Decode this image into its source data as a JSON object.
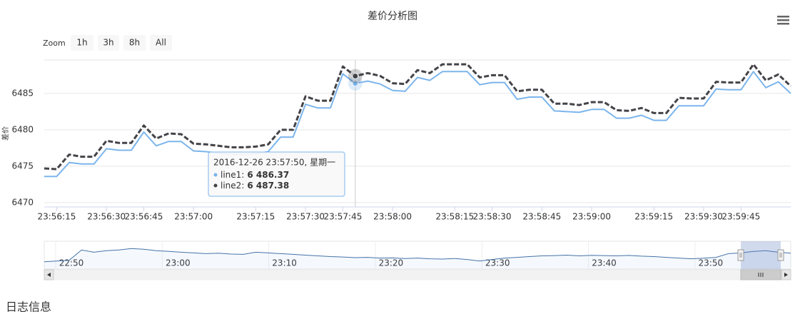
{
  "chart_data": {
    "type": "line",
    "title": "差价分析图",
    "y_label": "差价",
    "zoom": {
      "label": "Zoom",
      "buttons": [
        "1h",
        "3h",
        "8h",
        "All"
      ]
    },
    "categories": [
      null,
      "23:56:15",
      null,
      null,
      null,
      "23:56:30",
      null,
      null,
      "23:56:45",
      null,
      null,
      null,
      "23:57:00",
      null,
      null,
      null,
      null,
      "23:57:15",
      null,
      null,
      null,
      "23:57:30",
      null,
      null,
      "23:57:45",
      null,
      null,
      null,
      "23:58:00",
      null,
      null,
      null,
      null,
      "23:58:15",
      null,
      null,
      "23:58:30",
      null,
      null,
      null,
      "23:58:45",
      null,
      null,
      null,
      "23:59:00",
      null,
      null,
      null,
      null,
      "23:59:15",
      null,
      null,
      null,
      "23:59:30",
      null,
      null,
      "23:59:45",
      null,
      null,
      null,
      null
    ],
    "series": [
      {
        "name": "line1",
        "color": "#7cb5ec",
        "tooltip_label": "6 486.37",
        "values": [
          6473.6,
          6473.6,
          6475.5,
          6475.3,
          6475.3,
          6477.4,
          6477.2,
          6477.2,
          6479.7,
          6477.8,
          6478.4,
          6478.4,
          6477.1,
          6477.0,
          6476.8,
          6476.6,
          6476.6,
          6476.7,
          6477.0,
          6479.0,
          6479.0,
          6483.5,
          6483.0,
          6483.0,
          6487.7,
          6486.37,
          6486.7,
          6486.3,
          6485.4,
          6485.3,
          6487.2,
          6486.8,
          6488.0,
          6488.0,
          6488.0,
          6486.2,
          6486.5,
          6486.5,
          6484.2,
          6484.5,
          6484.5,
          6482.6,
          6482.5,
          6482.4,
          6482.8,
          6482.8,
          6481.6,
          6481.6,
          6482.0,
          6481.3,
          6481.3,
          6483.3,
          6483.3,
          6483.3,
          6485.6,
          6485.5,
          6485.5,
          6488.0,
          6485.8,
          6486.6,
          6485.0
        ]
      },
      {
        "name": "line2",
        "color": "#434348",
        "tooltip_label": "6 487.38",
        "values": [
          6474.7,
          6474.6,
          6476.6,
          6476.3,
          6476.3,
          6478.5,
          6478.2,
          6478.2,
          6480.6,
          6478.8,
          6479.5,
          6479.4,
          6478.1,
          6478.0,
          6477.8,
          6477.6,
          6477.6,
          6477.7,
          6478.0,
          6480.0,
          6480.0,
          6484.6,
          6484.0,
          6484.0,
          6488.7,
          6487.38,
          6487.8,
          6487.4,
          6486.4,
          6486.3,
          6488.2,
          6487.8,
          6489.0,
          6489.0,
          6489.0,
          6487.2,
          6487.5,
          6487.5,
          6485.3,
          6485.5,
          6485.5,
          6483.6,
          6483.6,
          6483.4,
          6483.8,
          6483.8,
          6482.7,
          6482.6,
          6483.0,
          6482.3,
          6482.3,
          6484.4,
          6484.3,
          6484.3,
          6486.6,
          6486.5,
          6486.5,
          6489.0,
          6486.8,
          6487.6,
          6486.0
        ]
      }
    ],
    "ylim": [
      6469.4,
      6489.6
    ],
    "yticks": [
      6470,
      6475,
      6480,
      6485
    ],
    "grid": true,
    "tooltip": {
      "header": "2016-12-26 23:57:50, 星期一",
      "separator": ":"
    },
    "navigator": {
      "xticks": [
        "22:50",
        "23:00",
        "23:10",
        "23:20",
        "23:30",
        "23:40",
        "23:50"
      ],
      "ylim": [
        6466,
        6484
      ],
      "values": [
        6471,
        6471.5,
        6472,
        6479,
        6477.5,
        6478.5,
        6479,
        6480,
        6479.5,
        6478.5,
        6478,
        6477.5,
        6477,
        6476.5,
        6476.8,
        6476.2,
        6476,
        6477.5,
        6477,
        6476.5,
        6476,
        6475.5,
        6475,
        6474.5,
        6474.2,
        6473.8,
        6474,
        6473.5,
        6473.6,
        6473.2,
        6473.5,
        6473,
        6472.8,
        6473.2,
        6472.5,
        6471.5,
        6472.5,
        6473.5,
        6474,
        6474.5,
        6475,
        6475.2,
        6475.5,
        6475,
        6475.4,
        6475.2,
        6475,
        6475.3,
        6474.8,
        6474.5,
        6474,
        6473.5,
        6473,
        6473.4,
        6474,
        6476.5,
        6477,
        6478,
        6478.5,
        6477.5,
        6476.8
      ]
    },
    "footer": "日志信息"
  }
}
